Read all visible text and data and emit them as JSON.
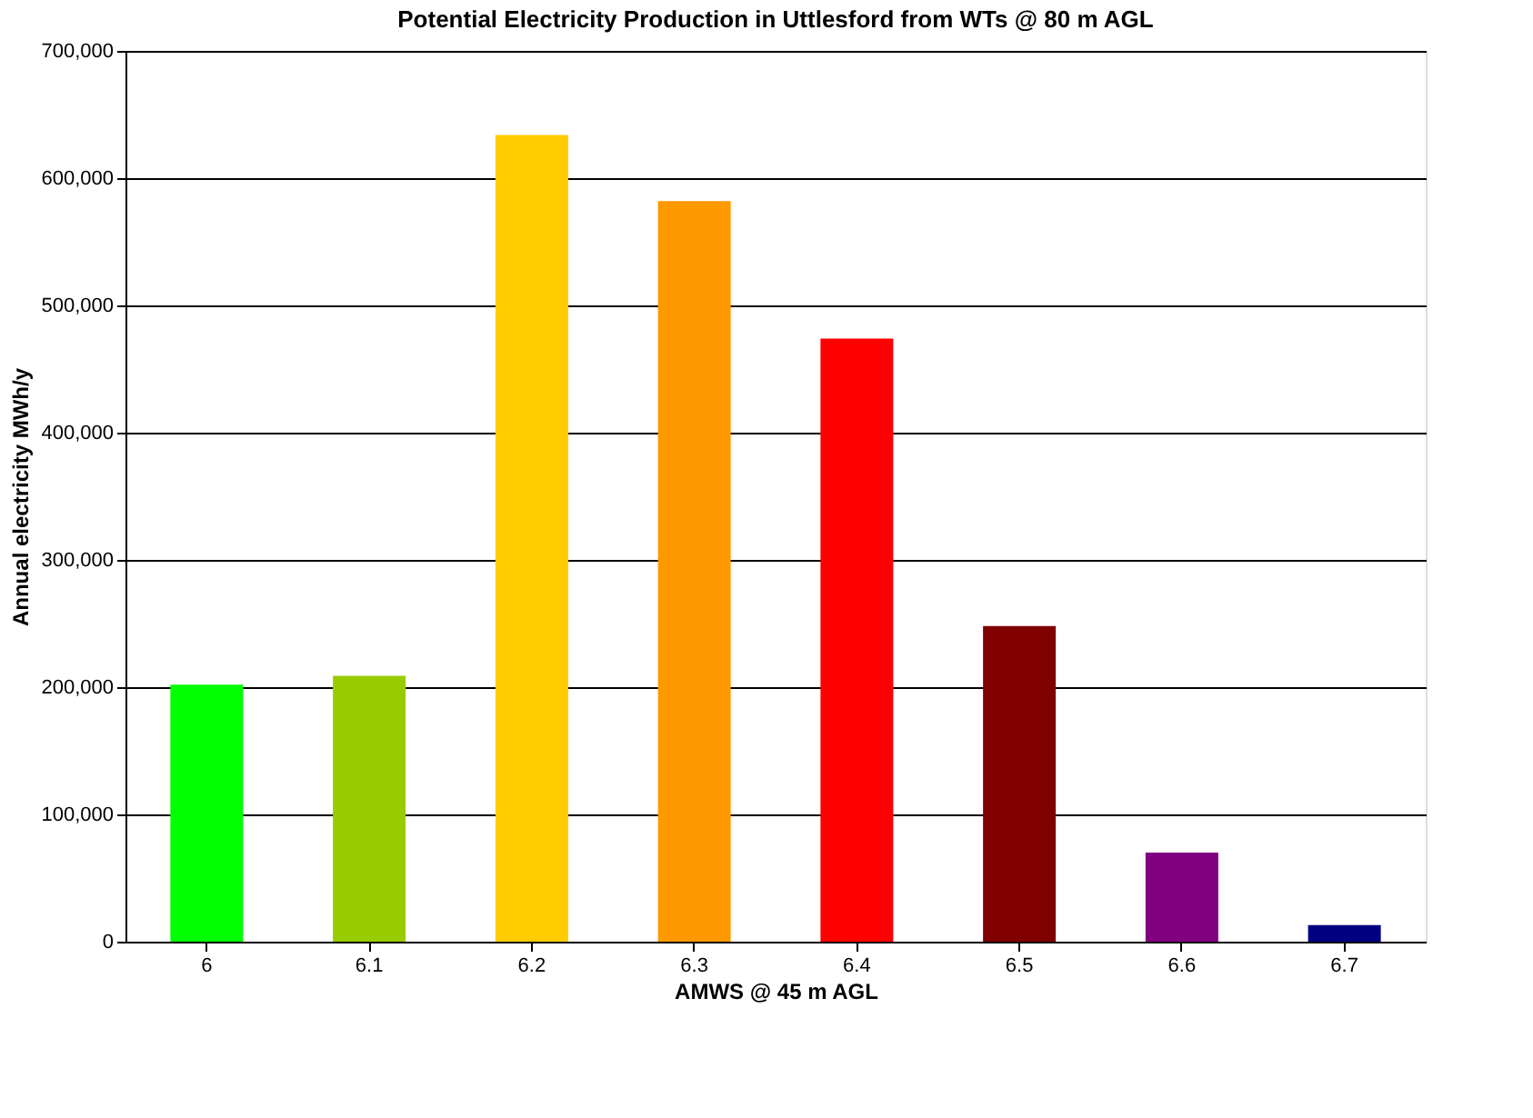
{
  "chart_data": {
    "type": "bar",
    "title": "Potential Electricity Production in Uttlesford from WTs @ 80 m AGL",
    "xlabel": "AMWS @ 45 m AGL",
    "ylabel": "Annual electricity MWh/y",
    "categories": [
      "6",
      "6.1",
      "6.2",
      "6.3",
      "6.4",
      "6.5",
      "6.6",
      "6.7"
    ],
    "values": [
      202000,
      209000,
      634000,
      582000,
      474000,
      248000,
      70000,
      13000
    ],
    "colors": [
      "#00ff00",
      "#99cc00",
      "#ffcc00",
      "#ff9900",
      "#ff0000",
      "#800000",
      "#800080",
      "#000080"
    ],
    "ylim": [
      0,
      700000
    ],
    "yticks": [
      0,
      {
        "value": 100000,
        "label": "100,000"
      },
      {
        "value": 200000,
        "label": "200,000"
      },
      {
        "value": 300000,
        "label": "300,000"
      },
      {
        "value": 400000,
        "label": "400,000"
      },
      {
        "value": 500000,
        "label": "500,000"
      },
      {
        "value": 600000,
        "label": "600,000"
      },
      {
        "value": 700000,
        "label": "700,000"
      }
    ],
    "grid": "y"
  }
}
